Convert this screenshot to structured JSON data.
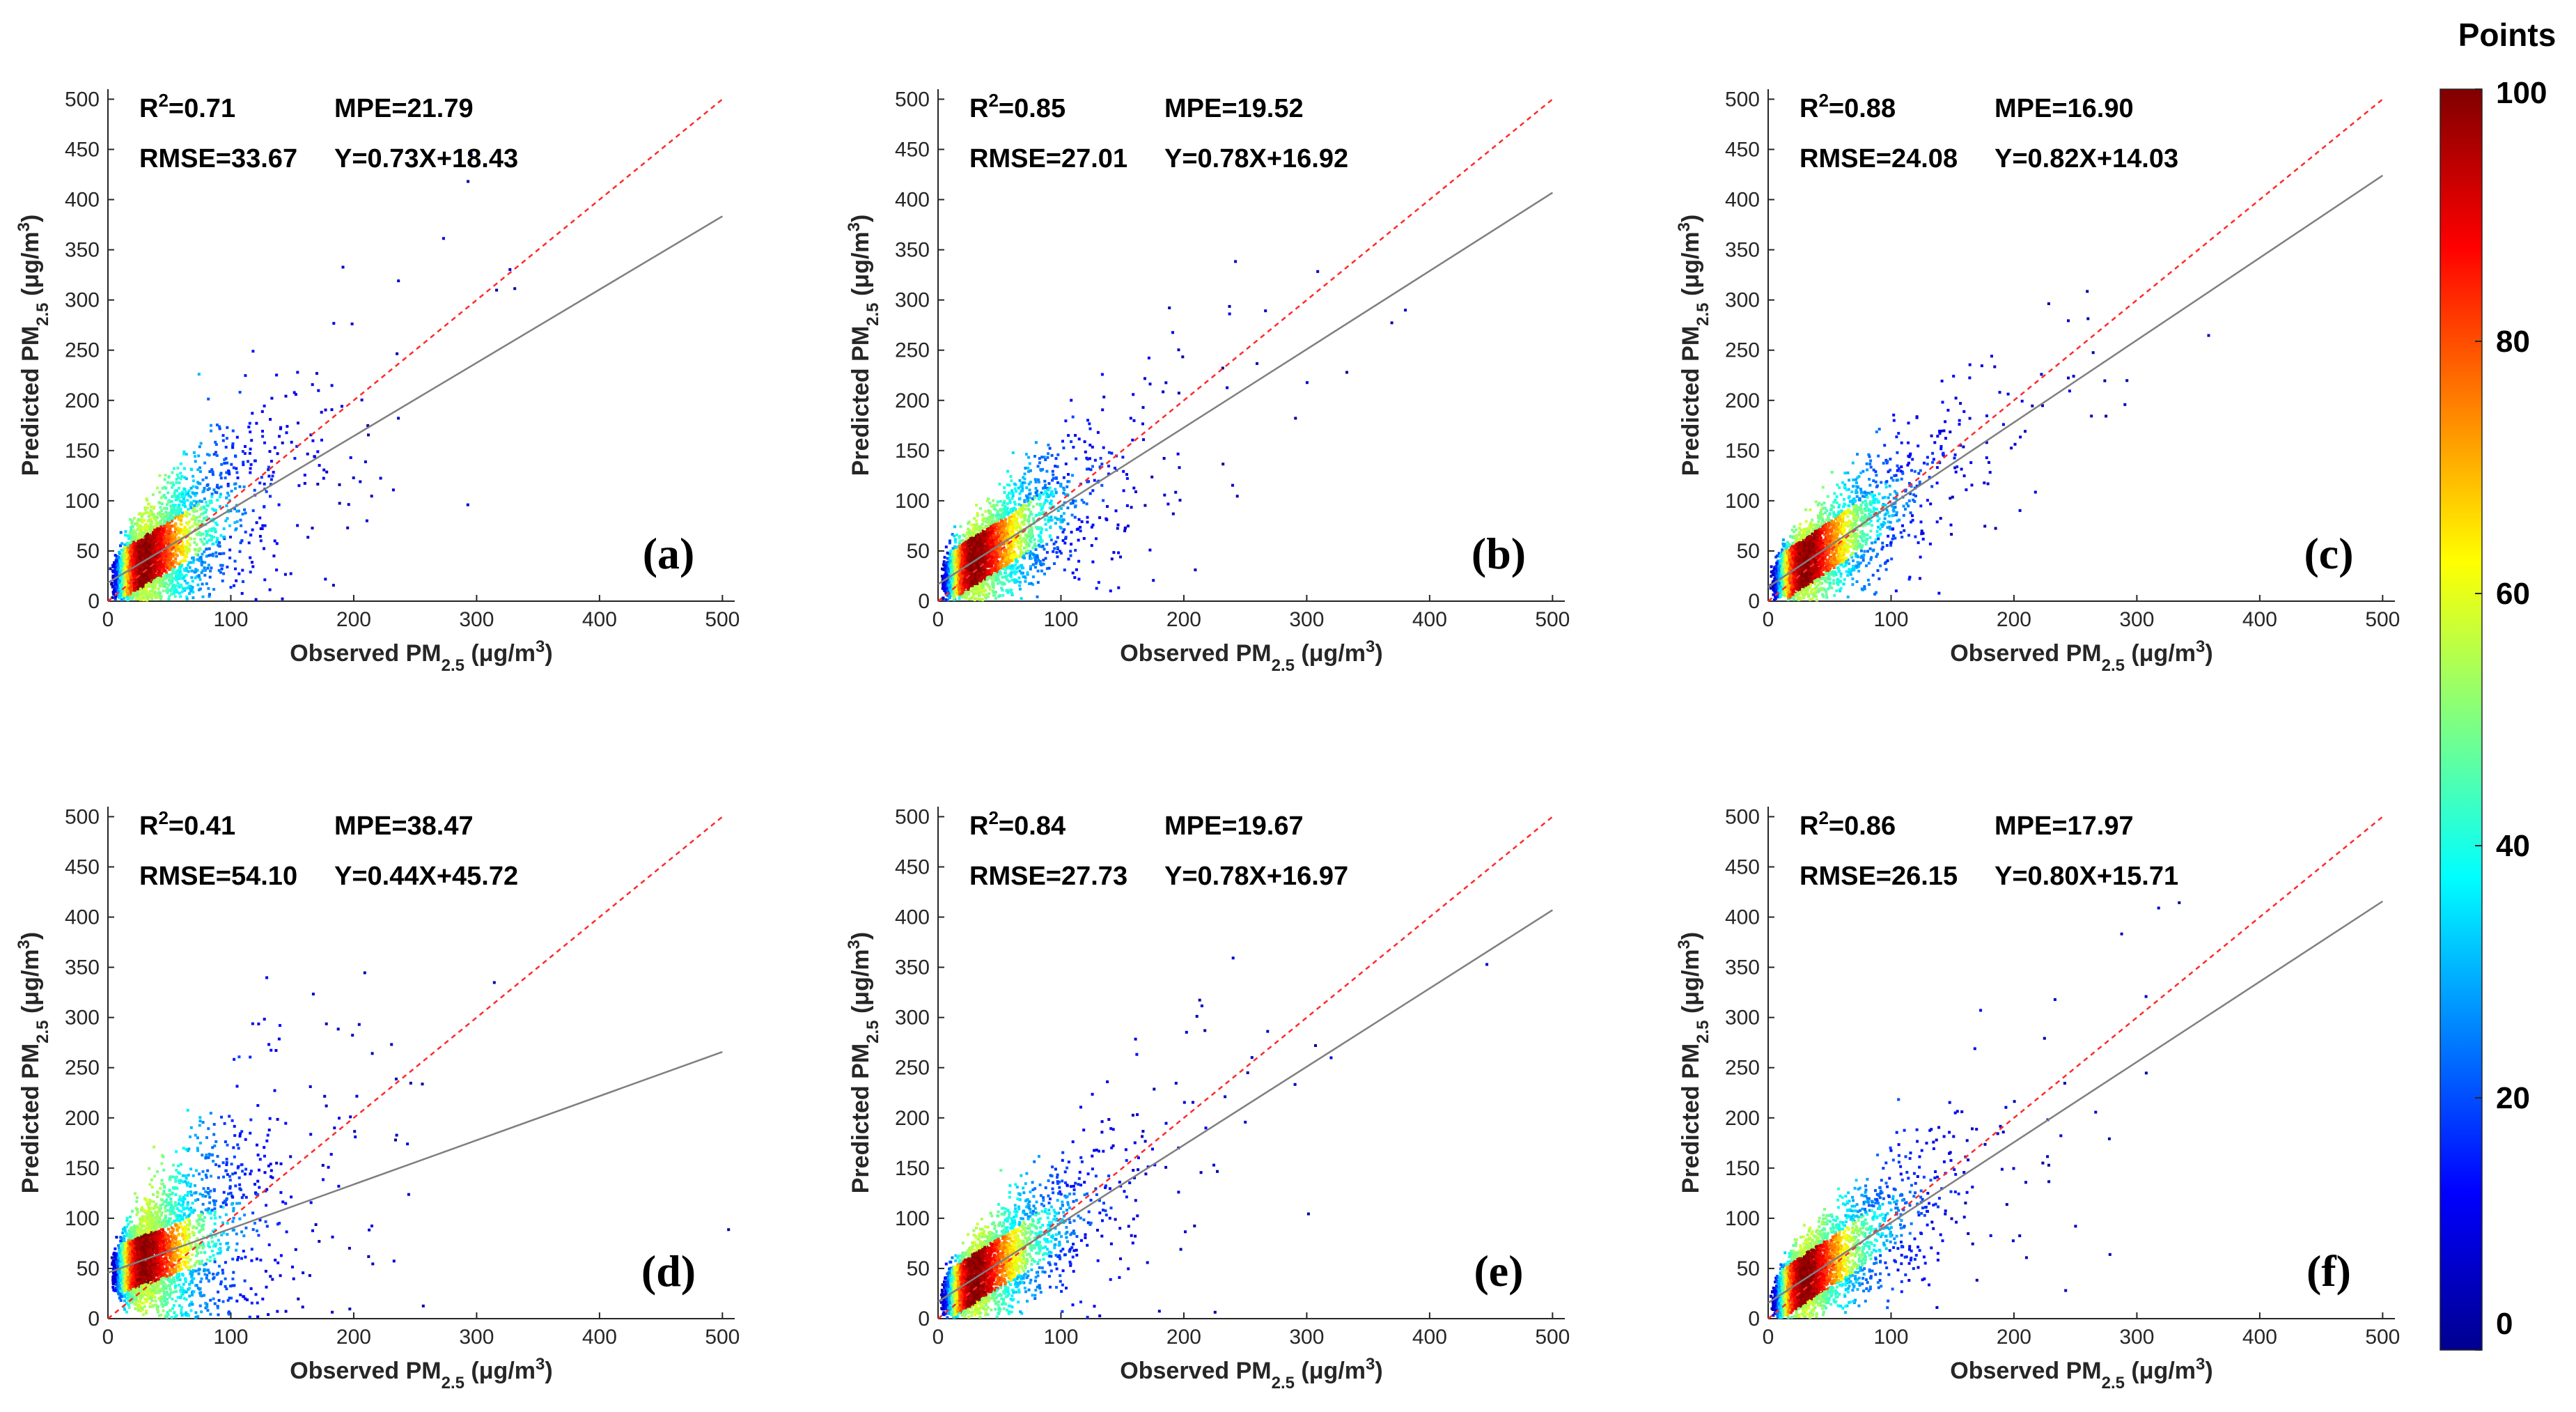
{
  "figure": {
    "colorbar": {
      "title": "Points",
      "ticks": [
        0,
        20,
        40,
        60,
        80,
        100
      ],
      "min": 0,
      "max": 100
    },
    "colormap": [
      "#00008f",
      "#0000ff",
      "#0080ff",
      "#00ffff",
      "#80ff80",
      "#ffff00",
      "#ff8000",
      "#ff0000",
      "#800000"
    ]
  },
  "chart_data": [
    {
      "type": "scatter",
      "panel": "(a)",
      "xlabel": "Observed PM",
      "xlabel_sub": "2.5",
      "xlabel_unit": " (μg/m",
      "xlabel_sup": "3",
      "xlabel_end": ")",
      "ylabel": "Predicted PM",
      "ylabel_sub": "2.5",
      "ylabel_unit": " (μg/m",
      "ylabel_sup": "3",
      "ylabel_end": ")",
      "xlim": [
        0,
        510
      ],
      "ylim": [
        0,
        510
      ],
      "xticks": [
        0,
        100,
        200,
        300,
        400,
        500
      ],
      "yticks": [
        0,
        50,
        100,
        150,
        200,
        250,
        300,
        350,
        400,
        450,
        500
      ],
      "stats": {
        "r2_prefix": "R",
        "r2_sup": "2",
        "r2_value": "=0.71",
        "mpe": "MPE=21.79",
        "rmse": "RMSE=33.67",
        "fit": "Y=0.73X+18.43"
      },
      "fit_line": {
        "slope": 0.73,
        "intercept": 18.43
      },
      "identity_line": {
        "slope": 1,
        "intercept": 0
      }
    },
    {
      "type": "scatter",
      "panel": "(b)",
      "xlabel": "Observed PM",
      "xlabel_sub": "2.5",
      "xlabel_unit": " (μg/m",
      "xlabel_sup": "3",
      "xlabel_end": ")",
      "ylabel": "Predicted PM",
      "ylabel_sub": "2.5",
      "ylabel_unit": " (μg/m",
      "ylabel_sup": "3",
      "ylabel_end": ")",
      "xlim": [
        0,
        510
      ],
      "ylim": [
        0,
        510
      ],
      "xticks": [
        0,
        100,
        200,
        300,
        400,
        500
      ],
      "yticks": [
        0,
        50,
        100,
        150,
        200,
        250,
        300,
        350,
        400,
        450,
        500
      ],
      "stats": {
        "r2_prefix": "R",
        "r2_sup": "2",
        "r2_value": "=0.85",
        "mpe": "MPE=19.52",
        "rmse": "RMSE=27.01",
        "fit": "Y=0.78X+16.92"
      },
      "fit_line": {
        "slope": 0.78,
        "intercept": 16.92
      },
      "identity_line": {
        "slope": 1,
        "intercept": 0
      }
    },
    {
      "type": "scatter",
      "panel": "(c)",
      "xlabel": "Observed PM",
      "xlabel_sub": "2.5",
      "xlabel_unit": " (μg/m",
      "xlabel_sup": "3",
      "xlabel_end": ")",
      "ylabel": "Predicted PM",
      "ylabel_sub": "2.5",
      "ylabel_unit": " (μg/m",
      "ylabel_sup": "3",
      "ylabel_end": ")",
      "xlim": [
        0,
        510
      ],
      "ylim": [
        0,
        510
      ],
      "xticks": [
        0,
        100,
        200,
        300,
        400,
        500
      ],
      "yticks": [
        0,
        50,
        100,
        150,
        200,
        250,
        300,
        350,
        400,
        450,
        500
      ],
      "stats": {
        "r2_prefix": "R",
        "r2_sup": "2",
        "r2_value": "=0.88",
        "mpe": "MPE=16.90",
        "rmse": "RMSE=24.08",
        "fit": "Y=0.82X+14.03"
      },
      "fit_line": {
        "slope": 0.82,
        "intercept": 14.03
      },
      "identity_line": {
        "slope": 1,
        "intercept": 0
      }
    },
    {
      "type": "scatter",
      "panel": "(d)",
      "xlabel": "Observed PM",
      "xlabel_sub": "2.5",
      "xlabel_unit": " (μg/m",
      "xlabel_sup": "3",
      "xlabel_end": ")",
      "ylabel": "Predicted PM",
      "ylabel_sub": "2.5",
      "ylabel_unit": " (μg/m",
      "ylabel_sup": "3",
      "ylabel_end": ")",
      "xlim": [
        0,
        510
      ],
      "ylim": [
        0,
        510
      ],
      "xticks": [
        0,
        100,
        200,
        300,
        400,
        500
      ],
      "yticks": [
        0,
        50,
        100,
        150,
        200,
        250,
        300,
        350,
        400,
        450,
        500
      ],
      "stats": {
        "r2_prefix": "R",
        "r2_sup": "2",
        "r2_value": "=0.41",
        "mpe": "MPE=38.47",
        "rmse": "RMSE=54.10",
        "fit": "Y=0.44X+45.72"
      },
      "fit_line": {
        "slope": 0.44,
        "intercept": 45.72
      },
      "identity_line": {
        "slope": 1,
        "intercept": 0
      }
    },
    {
      "type": "scatter",
      "panel": "(e)",
      "xlabel": "Observed PM",
      "xlabel_sub": "2.5",
      "xlabel_unit": " (μg/m",
      "xlabel_sup": "3",
      "xlabel_end": ")",
      "ylabel": "Predicted PM",
      "ylabel_sub": "2.5",
      "ylabel_unit": " (μg/m",
      "ylabel_sup": "3",
      "ylabel_end": ")",
      "xlim": [
        0,
        510
      ],
      "ylim": [
        0,
        510
      ],
      "xticks": [
        0,
        100,
        200,
        300,
        400,
        500
      ],
      "yticks": [
        0,
        50,
        100,
        150,
        200,
        250,
        300,
        350,
        400,
        450,
        500
      ],
      "stats": {
        "r2_prefix": "R",
        "r2_sup": "2",
        "r2_value": "=0.84",
        "mpe": "MPE=19.67",
        "rmse": "RMSE=27.73",
        "fit": "Y=0.78X+16.97"
      },
      "fit_line": {
        "slope": 0.78,
        "intercept": 16.97
      },
      "identity_line": {
        "slope": 1,
        "intercept": 0
      }
    },
    {
      "type": "scatter",
      "panel": "(f)",
      "xlabel": "Observed PM",
      "xlabel_sub": "2.5",
      "xlabel_unit": " (μg/m",
      "xlabel_sup": "3",
      "xlabel_end": ")",
      "ylabel": "Predicted PM",
      "ylabel_sub": "2.5",
      "ylabel_unit": " (μg/m",
      "ylabel_sup": "3",
      "ylabel_end": ")",
      "xlim": [
        0,
        510
      ],
      "ylim": [
        0,
        510
      ],
      "xticks": [
        0,
        100,
        200,
        300,
        400,
        500
      ],
      "yticks": [
        0,
        50,
        100,
        150,
        200,
        250,
        300,
        350,
        400,
        450,
        500
      ],
      "stats": {
        "r2_prefix": "R",
        "r2_sup": "2",
        "r2_value": "=0.86",
        "mpe": "MPE=17.97",
        "rmse": "RMSE=26.15",
        "fit": "Y=0.80X+15.71"
      },
      "fit_line": {
        "slope": 0.8,
        "intercept": 15.71
      },
      "identity_line": {
        "slope": 1,
        "intercept": 0
      }
    }
  ]
}
